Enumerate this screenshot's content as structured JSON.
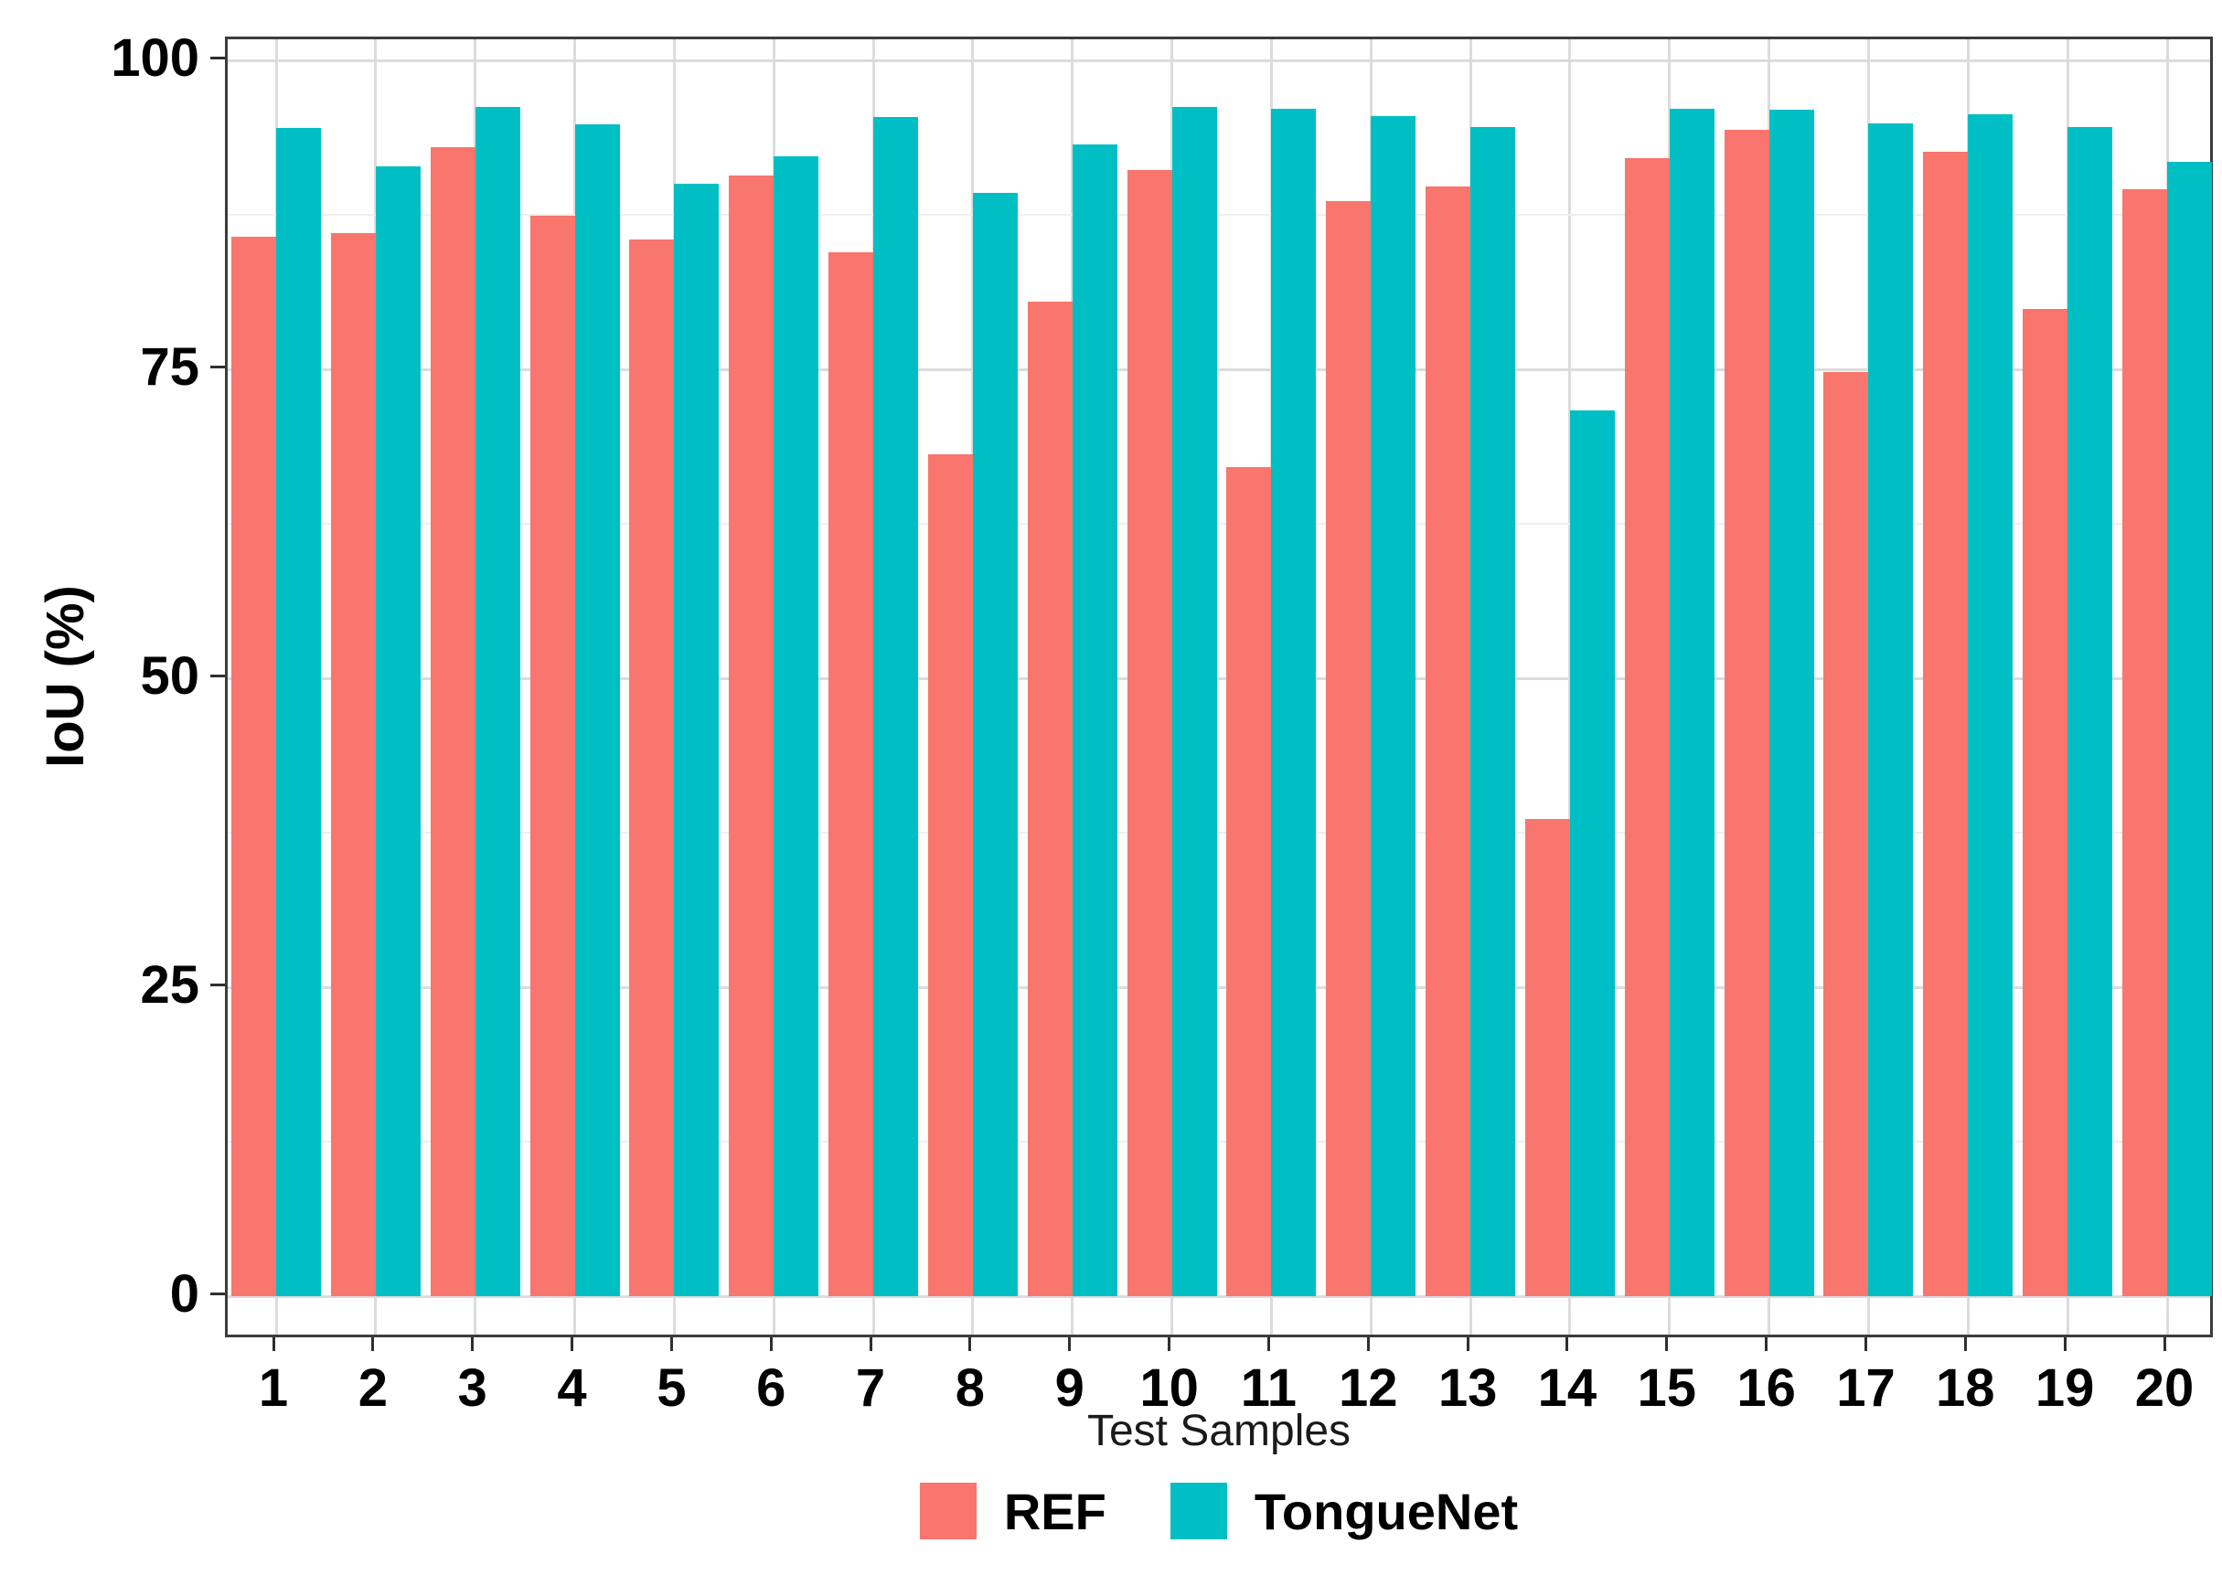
{
  "figure": {
    "background_color": "#ffffff"
  },
  "y_axis": {
    "label": "IoU (%)",
    "tick_labels": [
      "0",
      "25",
      "50",
      "75",
      "100"
    ],
    "tick_values": [
      0,
      25,
      50,
      75,
      100
    ],
    "minor_tick_values": [
      12.5,
      37.5,
      62.5,
      87.5
    ],
    "range": [
      0,
      100
    ]
  },
  "x_axis": {
    "label": "Test Samples",
    "tick_labels": [
      "1",
      "2",
      "3",
      "4",
      "5",
      "6",
      "7",
      "8",
      "9",
      "10",
      "11",
      "12",
      "13",
      "14",
      "15",
      "16",
      "17",
      "18",
      "19",
      "20"
    ]
  },
  "legend": {
    "position": "bottom",
    "items": [
      {
        "label": "REF",
        "color": "#F8766D"
      },
      {
        "label": "TongueNet",
        "color": "#00BFC4"
      }
    ]
  },
  "colors": {
    "ref_bar": "#F8766D",
    "tonguenet_bar": "#00BFC4",
    "major_grid": "#dcdcdc",
    "minor_grid": "#efefef",
    "panel_border": "#3c3c3c",
    "text": "#000000"
  },
  "chart_data": {
    "type": "bar",
    "title": "",
    "xlabel": "Test Samples",
    "ylabel": "IoU (%)",
    "ylim": [
      0,
      100
    ],
    "yticks": [
      0,
      25,
      50,
      75,
      100
    ],
    "grid": "major and minor horizontal gridlines, major vertical gridlines at each category",
    "legend_position": "bottom",
    "categories": [
      "1",
      "2",
      "3",
      "4",
      "5",
      "6",
      "7",
      "8",
      "9",
      "10",
      "11",
      "12",
      "13",
      "14",
      "15",
      "16",
      "17",
      "18",
      "19",
      "20"
    ],
    "series": [
      {
        "name": "REF",
        "color": "#F8766D",
        "values": [
          85.7,
          86.0,
          93.0,
          87.4,
          85.5,
          90.7,
          84.5,
          68.1,
          80.5,
          91.1,
          67.1,
          88.6,
          89.8,
          38.6,
          92.1,
          94.4,
          74.8,
          92.6,
          79.9,
          89.6
        ]
      },
      {
        "name": "TongueNet",
        "color": "#00BFC4",
        "values": [
          94.5,
          91.4,
          96.2,
          94.8,
          90.0,
          92.2,
          95.4,
          89.3,
          93.2,
          96.2,
          96.1,
          95.5,
          94.6,
          71.7,
          96.1,
          96.0,
          94.9,
          95.6,
          94.6,
          91.8
        ]
      }
    ]
  }
}
